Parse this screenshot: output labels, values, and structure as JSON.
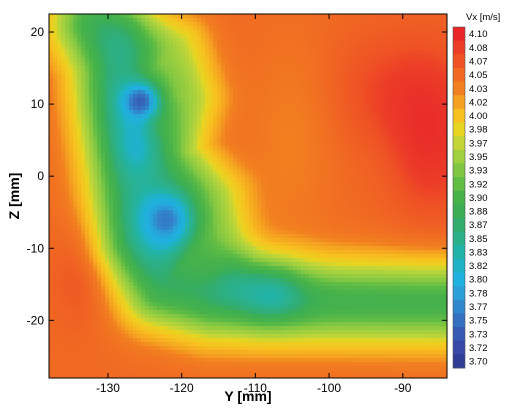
{
  "chart_data": {
    "type": "heatmap",
    "title": "",
    "xlabel": "Y  [mm]",
    "ylabel": "Z  [mm]",
    "xlim": [
      -138,
      -84
    ],
    "ylim": [
      -28,
      22.5
    ],
    "xticks": [
      -130,
      -120,
      -110,
      -100,
      -90
    ],
    "yticks": [
      20,
      10,
      0,
      -10,
      -20
    ],
    "colorbar": {
      "title": "Vx  [m/s]",
      "levels": [
        4.1,
        4.08,
        4.07,
        4.05,
        4.03,
        4.02,
        4.0,
        3.98,
        3.97,
        3.95,
        3.93,
        3.92,
        3.9,
        3.88,
        3.87,
        3.85,
        3.83,
        3.82,
        3.8,
        3.78,
        3.77,
        3.75,
        3.73,
        3.72,
        3.7
      ],
      "labels": [
        "4.10",
        "4.08",
        "4.07",
        "4.05",
        "4.03",
        "4.02",
        "4.00",
        "3.98",
        "3.97",
        "3.95",
        "3.93",
        "3.92",
        "3.90",
        "3.88",
        "3.87",
        "3.85",
        "3.83",
        "3.82",
        "3.80",
        "3.78",
        "3.77",
        "3.75",
        "3.73",
        "3.72",
        "3.70"
      ],
      "colors": [
        "#e8262a",
        "#ec3d27",
        "#ef5324",
        "#f06a22",
        "#f27f20",
        "#f5a020",
        "#f7c21f",
        "#e7d521",
        "#c4d637",
        "#a1d03f",
        "#80c642",
        "#62bd45",
        "#47b24a",
        "#3bae55",
        "#33ad6e",
        "#2bb08a",
        "#22b3a8",
        "#1fb2c6",
        "#1fb1e0",
        "#2a9fd8",
        "#3187cc",
        "#3570bf",
        "#3759b3",
        "#3848a6",
        "#2f3d97"
      ]
    },
    "background_velocity": 4.05,
    "features": [
      {
        "name": "upper vortex core",
        "y": -125.3,
        "z": 10.5,
        "vmin": 3.7
      },
      {
        "name": "lower vortex core",
        "y": -121.3,
        "z": -6.0,
        "vmin": 3.71
      },
      {
        "name": "horizontal wake",
        "y_start": -111,
        "y_end": -84,
        "z_center": -17.5,
        "vmin": 3.87
      },
      {
        "name": "left low-speed pocket",
        "y": -133.5,
        "z": -13.0,
        "vmin": 4.07
      },
      {
        "name": "right low-speed region",
        "y": -86,
        "z": 10.0,
        "vmin": 4.1
      }
    ]
  }
}
